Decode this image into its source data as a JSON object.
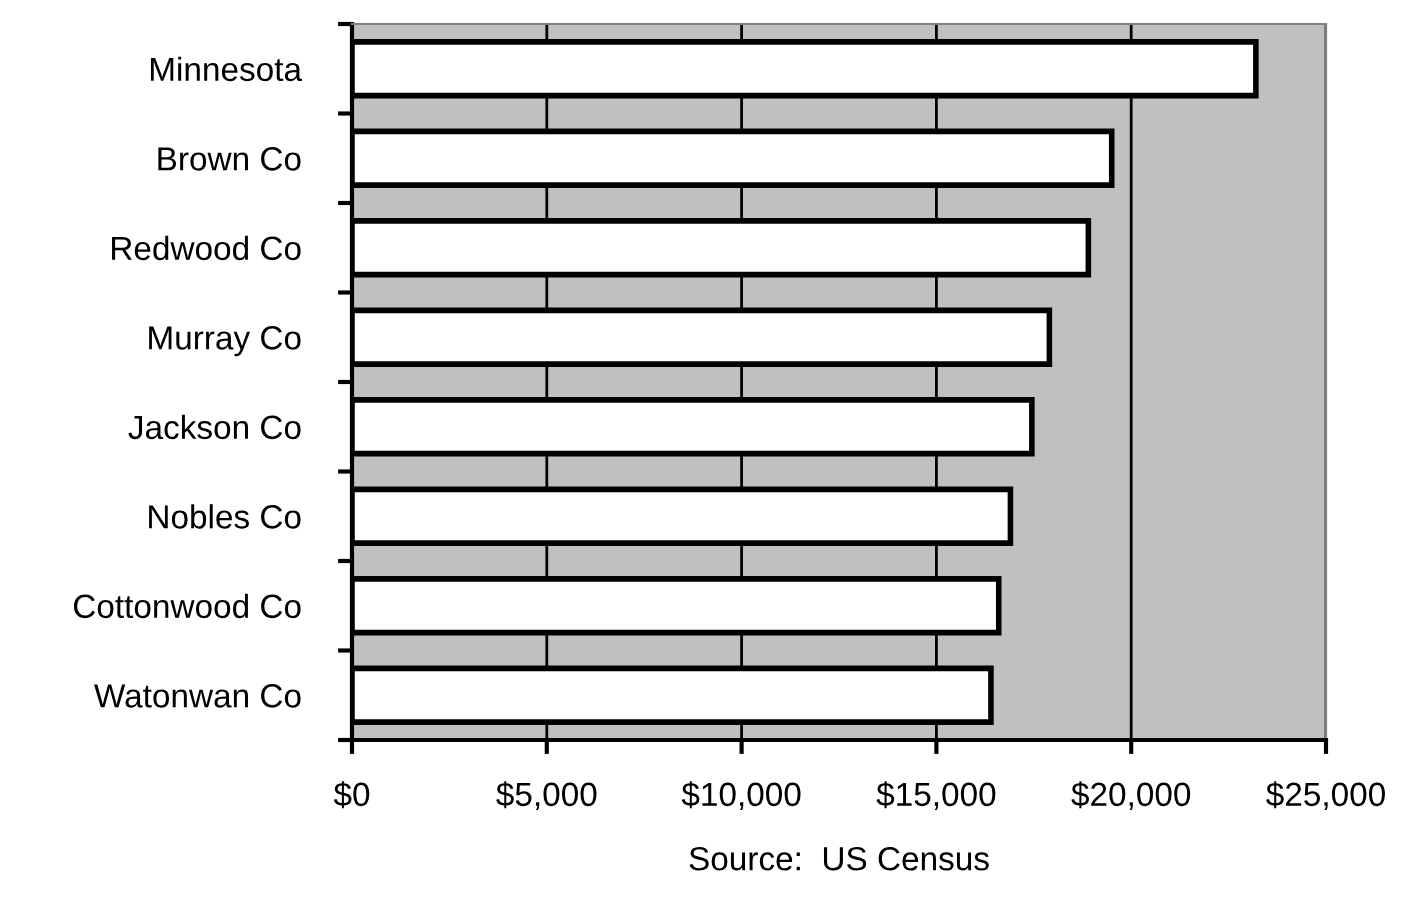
{
  "chart_data": {
    "type": "bar",
    "orientation": "horizontal",
    "categories": [
      "Minnesota",
      "Brown Co",
      "Redwood Co",
      "Murray Co",
      "Jackson Co",
      "Nobles Co",
      "Cottonwood Co",
      "Watonwan Co"
    ],
    "values": [
      23200,
      19500,
      18900,
      17900,
      17450,
      16900,
      16600,
      16400
    ],
    "color": "#ffffff",
    "xlim": [
      0,
      25000
    ],
    "xticks": [
      {
        "value": 0,
        "label": "$0"
      },
      {
        "value": 5000,
        "label": "$5,000"
      },
      {
        "value": 10000,
        "label": "$10,000"
      },
      {
        "value": 15000,
        "label": "$15,000"
      },
      {
        "value": 20000,
        "label": "$20,000"
      },
      {
        "value": 25000,
        "label": "$25,000"
      }
    ],
    "grid": "x",
    "xlabel": "Source:  US Census"
  }
}
